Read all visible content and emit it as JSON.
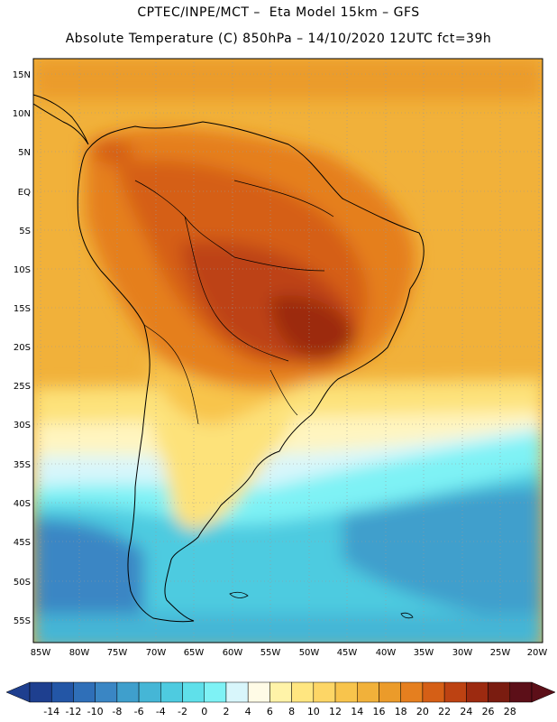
{
  "header": {
    "line1": "CPTEC/INPE/MCT –  Eta Model 15km – GFS",
    "line2": "Absolute Temperature (C) 850hPa – 14/10/2020 12UTC fct=39h"
  },
  "axes": {
    "lat_labels": [
      "15N",
      "10N",
      "5N",
      "EQ",
      "5S",
      "10S",
      "15S",
      "20S",
      "25S",
      "30S",
      "35S",
      "40S",
      "45S",
      "50S",
      "55S"
    ],
    "lon_labels": [
      "85W",
      "80W",
      "75W",
      "70W",
      "65W",
      "60W",
      "55W",
      "50W",
      "45W",
      "40W",
      "35W",
      "30W",
      "25W",
      "20W"
    ]
  },
  "colorbar": {
    "tick_labels": [
      "-14",
      "-12",
      "-10",
      "-8",
      "-6",
      "-4",
      "-2",
      "0",
      "2",
      "4",
      "6",
      "8",
      "10",
      "12",
      "14",
      "16",
      "18",
      "20",
      "22",
      "24",
      "26",
      "28"
    ],
    "colors": [
      "#1e3f8f",
      "#2356a6",
      "#2f6fb8",
      "#3a86c4",
      "#3f9fcc",
      "#45b6d6",
      "#4ecbe0",
      "#5fe0ea",
      "#7ef2f5",
      "#d8f6fb",
      "#fffbe6",
      "#fff3a8",
      "#ffe680",
      "#fdd666",
      "#f8c44c",
      "#f1b13a",
      "#eb9b2a",
      "#e57f1f",
      "#d55f16",
      "#bd4212",
      "#9c2a10",
      "#7a1c10",
      "#5c0f18"
    ],
    "under_color": "#1e3f8f",
    "over_color": "#5c0f18"
  }
}
